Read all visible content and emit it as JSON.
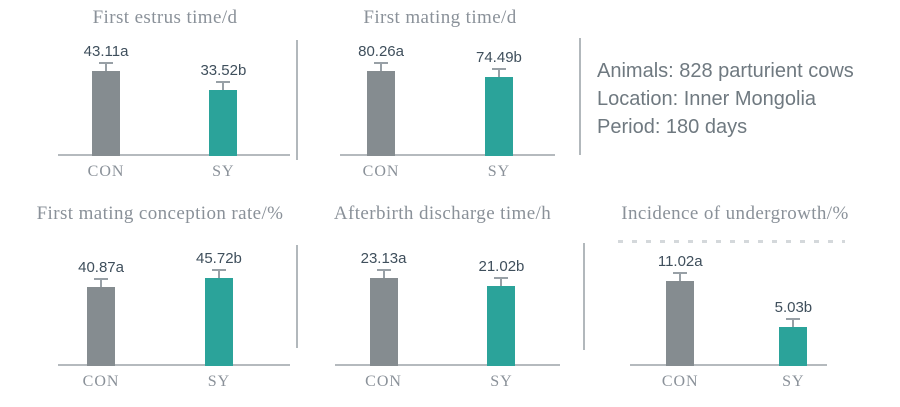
{
  "page": {
    "background": "#ffffff"
  },
  "info_panel": {
    "lines": [
      "Animals: 828 parturient cows",
      "Location: Inner Mongolia",
      "Period: 180 days"
    ]
  },
  "colors": {
    "bar_gray": "#858C90",
    "bar_teal": "#2BA39A",
    "title_text": "#8A9199",
    "value_text": "#3F4F5C",
    "axis_line": "#B5BABE",
    "divider": "#B2B8BC",
    "error_bar": "#98A0A6",
    "info_text": "#6F7980"
  },
  "chart_data": [
    {
      "type": "bar",
      "title": "First estrus time/d",
      "categories": [
        "CON",
        "SY"
      ],
      "values": [
        43.11,
        33.52
      ],
      "value_labels": [
        "43.11a",
        "33.52b"
      ],
      "colors": [
        "#858C90",
        "#2BA39A"
      ],
      "error_bars": true,
      "legend_position": "none"
    },
    {
      "type": "bar",
      "title": "First mating time/d",
      "categories": [
        "CON",
        "SY"
      ],
      "values": [
        80.26,
        74.49
      ],
      "value_labels": [
        "80.26a",
        "74.49b"
      ],
      "colors": [
        "#858C90",
        "#2BA39A"
      ],
      "error_bars": true,
      "legend_position": "none"
    },
    {
      "type": "bar",
      "title": "First mating conception rate/%",
      "categories": [
        "CON",
        "SY"
      ],
      "values": [
        40.87,
        45.72
      ],
      "value_labels": [
        "40.87a",
        "45.72b"
      ],
      "colors": [
        "#858C90",
        "#2BA39A"
      ],
      "error_bars": true,
      "legend_position": "none"
    },
    {
      "type": "bar",
      "title": "Afterbirth discharge time/h",
      "categories": [
        "CON",
        "SY"
      ],
      "values": [
        23.13,
        21.02
      ],
      "value_labels": [
        "23.13a",
        "21.02b"
      ],
      "colors": [
        "#858C90",
        "#2BA39A"
      ],
      "error_bars": true,
      "legend_position": "none"
    },
    {
      "type": "bar",
      "title": "Incidence of undergrowth/%",
      "categories": [
        "CON",
        "SY"
      ],
      "values": [
        11.02,
        5.03
      ],
      "value_labels": [
        "11.02a",
        "5.03b"
      ],
      "colors": [
        "#858C90",
        "#2BA39A"
      ],
      "error_bars": true,
      "legend_position": "none"
    }
  ]
}
